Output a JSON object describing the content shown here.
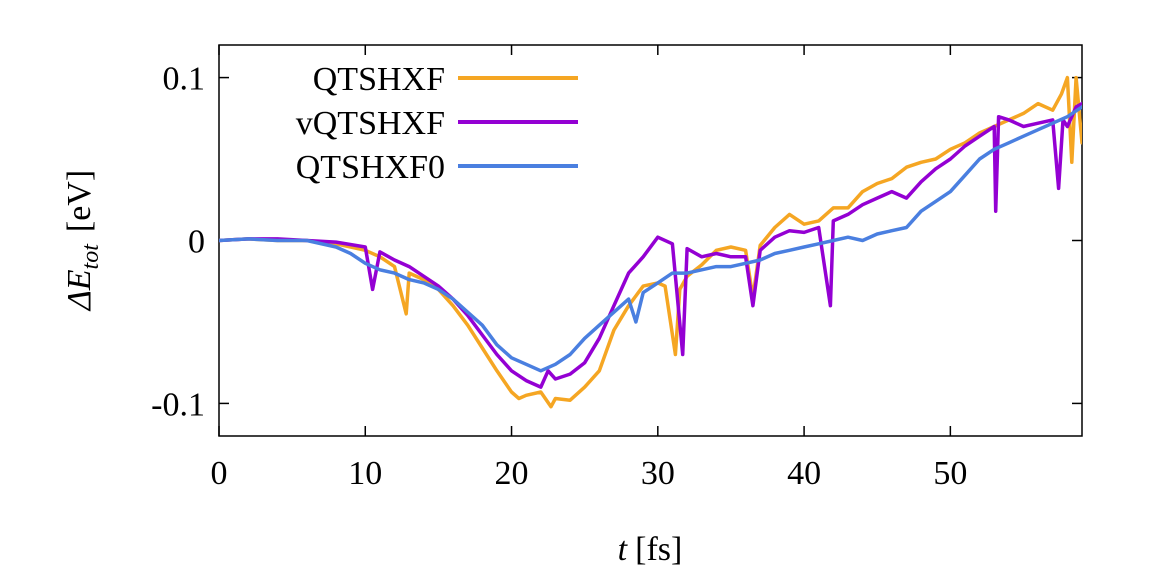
{
  "chart_data": {
    "type": "line",
    "xlabel": {
      "var": "t",
      "unit": "[fs]"
    },
    "ylabel": {
      "prefix": "ΔE",
      "subscript": "tot",
      "unit": "[eV]"
    },
    "xlim": [
      0,
      59
    ],
    "ylim": [
      -0.12,
      0.12
    ],
    "xticks": [
      0,
      10,
      20,
      30,
      40,
      50
    ],
    "yticks": [
      -0.1,
      0,
      0.1
    ],
    "ytick_labels": [
      "-0.1",
      "0",
      "0.1"
    ],
    "legend_position": "top-left",
    "grid": false,
    "series": [
      {
        "name": "QTSHXF",
        "color": "#f5a623",
        "points": [
          [
            0,
            0
          ],
          [
            2,
            0.001
          ],
          [
            4,
            0.0
          ],
          [
            6,
            0.0
          ],
          [
            8,
            -0.002
          ],
          [
            10,
            -0.006
          ],
          [
            11,
            -0.01
          ],
          [
            12,
            -0.016
          ],
          [
            12.8,
            -0.045
          ],
          [
            13,
            -0.02
          ],
          [
            14,
            -0.024
          ],
          [
            15,
            -0.03
          ],
          [
            16,
            -0.04
          ],
          [
            17,
            -0.052
          ],
          [
            18,
            -0.066
          ],
          [
            19,
            -0.08
          ],
          [
            20,
            -0.093
          ],
          [
            20.5,
            -0.097
          ],
          [
            21,
            -0.095
          ],
          [
            22,
            -0.093
          ],
          [
            22.7,
            -0.102
          ],
          [
            23,
            -0.097
          ],
          [
            24,
            -0.098
          ],
          [
            25,
            -0.09
          ],
          [
            26,
            -0.08
          ],
          [
            27,
            -0.055
          ],
          [
            28,
            -0.04
          ],
          [
            29,
            -0.028
          ],
          [
            30,
            -0.026
          ],
          [
            30.5,
            -0.028
          ],
          [
            31.2,
            -0.07
          ],
          [
            31.5,
            -0.03
          ],
          [
            32,
            -0.022
          ],
          [
            33,
            -0.015
          ],
          [
            34,
            -0.006
          ],
          [
            35,
            -0.004
          ],
          [
            36,
            -0.006
          ],
          [
            36.5,
            -0.035
          ],
          [
            37,
            -0.003
          ],
          [
            38,
            0.008
          ],
          [
            39,
            0.016
          ],
          [
            40,
            0.01
          ],
          [
            41,
            0.012
          ],
          [
            42,
            0.02
          ],
          [
            43,
            0.02
          ],
          [
            44,
            0.03
          ],
          [
            45,
            0.035
          ],
          [
            46,
            0.038
          ],
          [
            47,
            0.045
          ],
          [
            48,
            0.048
          ],
          [
            49,
            0.05
          ],
          [
            50,
            0.056
          ],
          [
            51,
            0.06
          ],
          [
            52,
            0.066
          ],
          [
            53,
            0.07
          ],
          [
            54,
            0.074
          ],
          [
            55,
            0.078
          ],
          [
            56,
            0.084
          ],
          [
            57,
            0.08
          ],
          [
            57.6,
            0.09
          ],
          [
            58,
            0.1
          ],
          [
            58.3,
            0.048
          ],
          [
            58.6,
            0.1
          ],
          [
            59,
            0.06
          ]
        ]
      },
      {
        "name": "vQTSHXF",
        "color": "#9400d3",
        "points": [
          [
            0,
            0
          ],
          [
            2,
            0.001
          ],
          [
            4,
            0.001
          ],
          [
            6,
            0.0
          ],
          [
            8,
            -0.001
          ],
          [
            10,
            -0.004
          ],
          [
            10.5,
            -0.03
          ],
          [
            11,
            -0.007
          ],
          [
            12,
            -0.012
          ],
          [
            13,
            -0.016
          ],
          [
            14,
            -0.022
          ],
          [
            15,
            -0.028
          ],
          [
            16,
            -0.036
          ],
          [
            17,
            -0.046
          ],
          [
            18,
            -0.058
          ],
          [
            19,
            -0.07
          ],
          [
            20,
            -0.08
          ],
          [
            21,
            -0.086
          ],
          [
            22,
            -0.09
          ],
          [
            22.5,
            -0.08
          ],
          [
            23,
            -0.085
          ],
          [
            24,
            -0.082
          ],
          [
            25,
            -0.075
          ],
          [
            26,
            -0.06
          ],
          [
            27,
            -0.04
          ],
          [
            28,
            -0.02
          ],
          [
            29,
            -0.01
          ],
          [
            30,
            0.002
          ],
          [
            31,
            -0.002
          ],
          [
            31.7,
            -0.07
          ],
          [
            32,
            -0.005
          ],
          [
            33,
            -0.01
          ],
          [
            34,
            -0.008
          ],
          [
            35,
            -0.01
          ],
          [
            36,
            -0.01
          ],
          [
            36.5,
            -0.04
          ],
          [
            37,
            -0.006
          ],
          [
            38,
            0.002
          ],
          [
            39,
            0.006
          ],
          [
            40,
            0.005
          ],
          [
            41,
            0.008
          ],
          [
            41.8,
            -0.04
          ],
          [
            42,
            0.012
          ],
          [
            43,
            0.016
          ],
          [
            44,
            0.022
          ],
          [
            45,
            0.026
          ],
          [
            46,
            0.03
          ],
          [
            47,
            0.026
          ],
          [
            48,
            0.036
          ],
          [
            49,
            0.044
          ],
          [
            50,
            0.05
          ],
          [
            51,
            0.058
          ],
          [
            52,
            0.064
          ],
          [
            53,
            0.07
          ],
          [
            53.1,
            0.018
          ],
          [
            53.3,
            0.076
          ],
          [
            54,
            0.074
          ],
          [
            55,
            0.07
          ],
          [
            56,
            0.072
          ],
          [
            57,
            0.074
          ],
          [
            57.4,
            0.032
          ],
          [
            57.7,
            0.074
          ],
          [
            58,
            0.07
          ],
          [
            58.6,
            0.082
          ],
          [
            59,
            0.084
          ]
        ]
      },
      {
        "name": "QTSHXF0",
        "color": "#4a7fe0",
        "points": [
          [
            0,
            0
          ],
          [
            2,
            0.001
          ],
          [
            4,
            0.0
          ],
          [
            6,
            0.0
          ],
          [
            8,
            -0.004
          ],
          [
            9,
            -0.008
          ],
          [
            10,
            -0.014
          ],
          [
            11,
            -0.018
          ],
          [
            12,
            -0.02
          ],
          [
            13,
            -0.024
          ],
          [
            14,
            -0.026
          ],
          [
            15,
            -0.03
          ],
          [
            16,
            -0.036
          ],
          [
            17,
            -0.044
          ],
          [
            18,
            -0.052
          ],
          [
            19,
            -0.064
          ],
          [
            20,
            -0.072
          ],
          [
            21,
            -0.076
          ],
          [
            22,
            -0.08
          ],
          [
            23,
            -0.076
          ],
          [
            24,
            -0.07
          ],
          [
            25,
            -0.06
          ],
          [
            26,
            -0.052
          ],
          [
            27,
            -0.044
          ],
          [
            28,
            -0.036
          ],
          [
            28.5,
            -0.05
          ],
          [
            29,
            -0.032
          ],
          [
            30,
            -0.026
          ],
          [
            31,
            -0.02
          ],
          [
            32,
            -0.02
          ],
          [
            33,
            -0.018
          ],
          [
            34,
            -0.016
          ],
          [
            35,
            -0.016
          ],
          [
            36,
            -0.014
          ],
          [
            37,
            -0.012
          ],
          [
            38,
            -0.008
          ],
          [
            39,
            -0.006
          ],
          [
            40,
            -0.004
          ],
          [
            41,
            -0.002
          ],
          [
            42,
            0.0
          ],
          [
            43,
            0.002
          ],
          [
            44,
            0.0
          ],
          [
            45,
            0.004
          ],
          [
            46,
            0.006
          ],
          [
            47,
            0.008
          ],
          [
            48,
            0.018
          ],
          [
            49,
            0.024
          ],
          [
            50,
            0.03
          ],
          [
            51,
            0.04
          ],
          [
            52,
            0.05
          ],
          [
            53,
            0.056
          ],
          [
            54,
            0.06
          ],
          [
            55,
            0.064
          ],
          [
            56,
            0.068
          ],
          [
            57,
            0.072
          ],
          [
            58,
            0.076
          ],
          [
            59,
            0.082
          ]
        ]
      }
    ]
  }
}
